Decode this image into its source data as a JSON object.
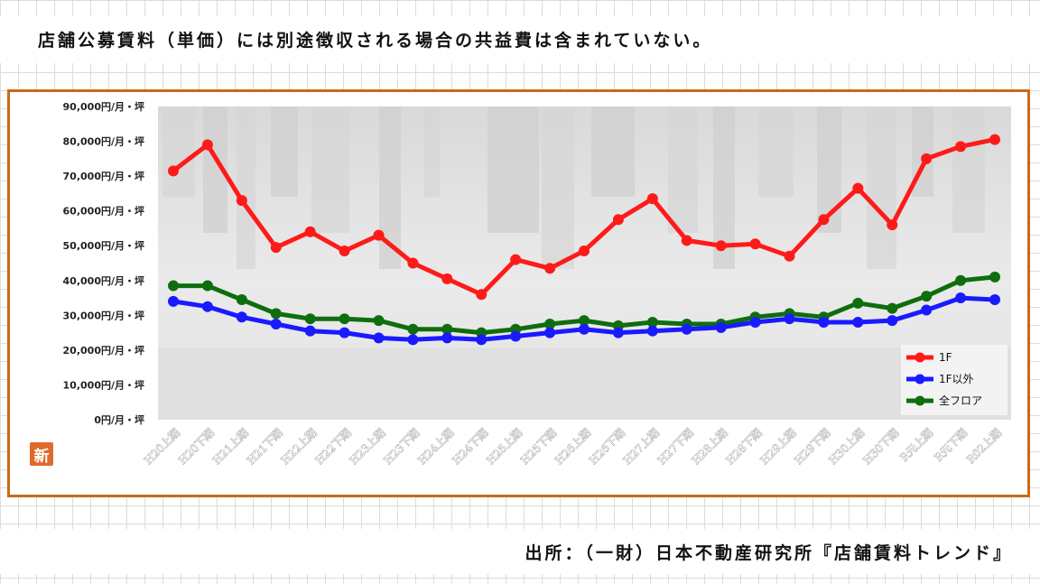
{
  "header": {
    "note": "店舗公募賃料（単価）には別途徴収される場合の共益費は含まれていない。"
  },
  "badge": {
    "label": "新"
  },
  "footer": {
    "source": "出所：（一財）日本不動産研究所『店舗賃料トレンド』"
  },
  "chart_data": {
    "type": "line",
    "categories": [
      "H20上期",
      "H20下期",
      "H21上期",
      "H21下期",
      "H22上期",
      "H22下期",
      "H23上期",
      "H23下期",
      "H24上期",
      "H24下期",
      "H25上期",
      "H25下期",
      "H26上期",
      "H26下期",
      "H27上期",
      "H27下期",
      "H28上期",
      "H28下期",
      "H29上期",
      "H29下期",
      "H30上期",
      "H30下期",
      "R元上期",
      "R元下期",
      "R02上期"
    ],
    "series": [
      {
        "name": "1F",
        "color": "#ff1a1a",
        "values": [
          71500,
          79000,
          63000,
          49500,
          54000,
          48500,
          53000,
          45000,
          40500,
          36000,
          46000,
          43500,
          48500,
          57500,
          63500,
          51500,
          50000,
          50500,
          47000,
          57500,
          66500,
          56000,
          75000,
          78500,
          80500
        ]
      },
      {
        "name": "1F以外",
        "color": "#1a1aff",
        "values": [
          34000,
          32500,
          29500,
          27500,
          25500,
          25000,
          23500,
          23000,
          23500,
          23000,
          24000,
          25000,
          26000,
          25000,
          25500,
          26000,
          26500,
          28000,
          29000,
          28000,
          28000,
          28500,
          31500,
          35000,
          34500
        ]
      },
      {
        "name": "全フロア",
        "color": "#0e6e0e",
        "values": [
          38500,
          38500,
          34500,
          30500,
          29000,
          29000,
          28500,
          26000,
          26000,
          25000,
          26000,
          27500,
          28500,
          27000,
          28000,
          27500,
          27500,
          29500,
          30500,
          29500,
          33500,
          32000,
          35500,
          40000,
          41000
        ]
      }
    ],
    "yticks": [
      "0円/月・坪",
      "10,000円/月・坪",
      "20,000円/月・坪",
      "30,000円/月・坪",
      "40,000円/月・坪",
      "50,000円/月・坪",
      "60,000円/月・坪",
      "70,000円/月・坪",
      "80,000円/月・坪",
      "90,000円/月・坪"
    ],
    "ylim": [
      0,
      90000
    ],
    "legend_position": "bottom-right"
  }
}
